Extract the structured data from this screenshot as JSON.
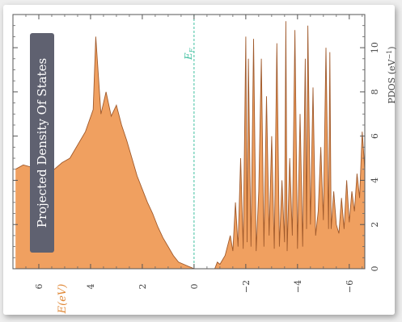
{
  "chart_data": {
    "type": "area",
    "orientation": "rotated-90",
    "title": "Projected Density Of States",
    "xlabel": "E(eV)",
    "ylabel": "PDOS (eV^-1)",
    "ylabel_parts": {
      "main": "PDOS (eV",
      "sup": "−1",
      "close": ")"
    },
    "x_ticks": [
      "6",
      "4",
      "2",
      "0",
      "−2",
      "−4",
      "−6"
    ],
    "x_tick_values": [
      6,
      4,
      2,
      0,
      -2,
      -4,
      -6
    ],
    "y_ticks": [
      "0",
      "2",
      "4",
      "6",
      "8",
      "10"
    ],
    "y_tick_values": [
      0,
      2,
      4,
      6,
      8,
      10
    ],
    "xlim": [
      7,
      -6.6
    ],
    "ylim": [
      0,
      11.5
    ],
    "fermi_label": "E_F",
    "fermi_label_parts": {
      "main": "E",
      "sub": "F"
    },
    "fermi_energy": 0,
    "fill_color": "#f0a060",
    "line_color": "#a05a2c",
    "fermi_color": "#40c0a0",
    "title_box_color": "#5f6170",
    "series": [
      {
        "x": [
          6.9,
          6.6,
          6.3,
          6.0,
          5.7,
          5.4,
          5.1,
          4.8,
          4.5,
          4.2,
          3.9,
          3.8,
          3.6,
          3.4,
          3.2,
          3.0,
          2.8,
          2.6,
          2.4,
          2.2,
          2.0,
          1.8,
          1.6,
          1.4,
          1.2,
          1.0,
          0.8,
          0.6,
          0.4,
          0.2,
          0.1,
          0.0,
          -0.4,
          -0.8,
          -0.9,
          -1.0,
          -1.2,
          -1.4,
          -1.5,
          -1.6,
          -1.7,
          -1.8,
          -1.9,
          -2.0,
          -2.05,
          -2.1,
          -2.2,
          -2.3,
          -2.4,
          -2.5,
          -2.6,
          -2.7,
          -2.8,
          -2.9,
          -3.0,
          -3.1,
          -3.2,
          -3.3,
          -3.4,
          -3.5,
          -3.55,
          -3.6,
          -3.7,
          -3.8,
          -3.9,
          -4.0,
          -4.1,
          -4.2,
          -4.3,
          -4.35,
          -4.4,
          -4.5,
          -4.6,
          -4.7,
          -4.8,
          -4.9,
          -5.0,
          -5.1,
          -5.2,
          -5.25,
          -5.3,
          -5.4,
          -5.5,
          -5.6,
          -5.7,
          -5.8,
          -5.9,
          -6.0,
          -6.1,
          -6.2,
          -6.3,
          -6.4,
          -6.5,
          -6.6
        ],
        "y": [
          4.5,
          4.7,
          4.6,
          4.8,
          4.4,
          4.5,
          4.8,
          5.0,
          5.6,
          6.2,
          7.2,
          10.5,
          7.0,
          8.0,
          6.9,
          7.4,
          6.5,
          5.8,
          5.0,
          4.2,
          3.6,
          3.0,
          2.5,
          1.9,
          1.4,
          1.0,
          0.6,
          0.3,
          0.2,
          0.1,
          0.05,
          0.0,
          0.0,
          0.0,
          0.3,
          0.2,
          0.6,
          1.5,
          0.8,
          3.0,
          1.0,
          5.0,
          0.9,
          10.5,
          1.2,
          9.5,
          1.0,
          10.4,
          0.8,
          3.5,
          9.5,
          1.0,
          7.8,
          1.5,
          6.0,
          0.9,
          10.2,
          1.0,
          4.0,
          1.2,
          11.2,
          0.8,
          5.0,
          1.5,
          10.8,
          0.9,
          7.0,
          1.0,
          9.5,
          1.8,
          11.0,
          2.0,
          8.2,
          1.5,
          2.6,
          5.5,
          2.2,
          10.0,
          1.8,
          9.8,
          1.8,
          3.5,
          2.0,
          1.6,
          3.2,
          1.8,
          4.0,
          2.1,
          3.5,
          2.6,
          4.3,
          3.2,
          6.2,
          4.5
        ]
      }
    ],
    "grid": false,
    "legend": "none"
  }
}
